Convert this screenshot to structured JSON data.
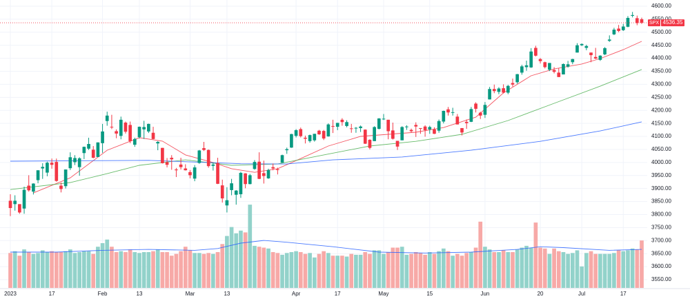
{
  "chart_data": {
    "type": "candlestick",
    "symbol": "SPX",
    "up_color": "#089981",
    "down_color": "#f23645",
    "volume_up_color": "#92d2ca",
    "volume_down_color": "#f7a9a7",
    "grid": true,
    "ylim": [
      3550,
      4600
    ],
    "yticks": [
      {
        "value": 3550,
        "label": "3550.00"
      },
      {
        "value": 3600,
        "label": "3600.00"
      },
      {
        "value": 3650,
        "label": "3650.00"
      },
      {
        "value": 3700,
        "label": "3700.00"
      },
      {
        "value": 3750,
        "label": "3750.00"
      },
      {
        "value": 3800,
        "label": "3800.00"
      },
      {
        "value": 3850,
        "label": "3850.00"
      },
      {
        "value": 3900,
        "label": "3900.00"
      },
      {
        "value": 3950,
        "label": "3950.00"
      },
      {
        "value": 4000,
        "label": "4000.00"
      },
      {
        "value": 4050,
        "label": "4050.00"
      },
      {
        "value": 4100,
        "label": "4100.00"
      },
      {
        "value": 4150,
        "label": "4150.00"
      },
      {
        "value": 4200,
        "label": "4200.00"
      },
      {
        "value": 4250,
        "label": "4250.00"
      },
      {
        "value": 4300,
        "label": "4300.00"
      },
      {
        "value": 4350,
        "label": "4350.00"
      },
      {
        "value": 4400,
        "label": "4400.00"
      },
      {
        "value": 4450,
        "label": "4450.00"
      },
      {
        "value": 4500,
        "label": "4500.00"
      },
      {
        "value": 4550,
        "label": "4550.00"
      },
      {
        "value": 4600,
        "label": "4600.00"
      }
    ],
    "xlim": [
      0,
      137
    ],
    "xticks": [
      {
        "value": 0,
        "label": "2023"
      },
      {
        "value": 9,
        "label": "17"
      },
      {
        "value": 20,
        "label": "Feb"
      },
      {
        "value": 28,
        "label": "13"
      },
      {
        "value": 39,
        "label": "Mar"
      },
      {
        "value": 47,
        "label": "13"
      },
      {
        "value": 62,
        "label": "Apr"
      },
      {
        "value": 71,
        "label": "17"
      },
      {
        "value": 81,
        "label": "May"
      },
      {
        "value": 91,
        "label": "15"
      },
      {
        "value": 103,
        "label": "Jun"
      },
      {
        "value": 115,
        "label": "20"
      },
      {
        "value": 124,
        "label": "Jul"
      },
      {
        "value": 133,
        "label": "17"
      }
    ],
    "volume_lim": [
      0,
      32
    ],
    "open": [
      3853,
      3840,
      3840,
      3823,
      3911,
      3888,
      3932,
      3977,
      3961,
      3999,
      4002,
      3911,
      3909,
      3978,
      4001,
      3982,
      4036,
      4053,
      4049,
      4021,
      4074,
      4159,
      4137,
      4120,
      4102,
      4153,
      4144,
      4068,
      4097,
      4127,
      4119,
      4114,
      4073,
      4056,
      4001,
      4018,
      3973,
      3992,
      3977,
      3963,
      3938,
      3998,
      4055,
      4048,
      3987,
      3998,
      3912,
      3835,
      3894,
      3876,
      3878,
      3958,
      3917,
      3975,
      4003,
      3959,
      3939,
      3982,
      3974,
      3999,
      4047,
      4057,
      4102,
      4128,
      4095,
      4082,
      4085,
      4122,
      4121,
      4100,
      4140,
      4137,
      4164,
      4140,
      4131,
      4133,
      4132,
      4126,
      4087,
      4082,
      4129,
      4166,
      4164,
      4123,
      4083,
      4085,
      4136,
      4125,
      4144,
      4132,
      4138,
      4127,
      4127,
      4122,
      4157,
      4204,
      4191,
      4176,
      4132,
      4156,
      4156,
      4226,
      4191,
      4183,
      4242,
      4282,
      4271,
      4285,
      4268,
      4305,
      4308,
      4345,
      4366,
      4365,
      4440,
      4397,
      4385,
      4356,
      4355,
      4345,
      4338,
      4368,
      4385,
      4422,
      4450,
      4440,
      4422,
      4405,
      4394,
      4415,
      4467,
      4492,
      4514,
      4508,
      4521,
      4563,
      4554,
      4550
    ],
    "high": [
      3878,
      3874,
      3840,
      3907,
      3951,
      3920,
      3970,
      3997,
      4003,
      4015,
      4015,
      3923,
      3973,
      4039,
      4028,
      4020,
      4061,
      4095,
      4063,
      4077,
      4148,
      4195,
      4183,
      4127,
      4176,
      4157,
      4157,
      4095,
      4138,
      4160,
      4149,
      4137,
      4082,
      4056,
      4017,
      4028,
      3979,
      4018,
      3993,
      3971,
      3990,
      4048,
      4079,
      4050,
      4000,
      4018,
      3934,
      3905,
      3937,
      3894,
      3964,
      3959,
      3956,
      4009,
      4039,
      4007,
      3976,
      3996,
      3980,
      4030,
      4057,
      4110,
      4128,
      4134,
      4103,
      4107,
      4110,
      4125,
      4125,
      4150,
      4164,
      4152,
      4170,
      4162,
      4148,
      4136,
      4142,
      4127,
      4089,
      4139,
      4170,
      4186,
      4164,
      4153,
      4083,
      4139,
      4143,
      4130,
      4154,
      4132,
      4143,
      4141,
      4135,
      4165,
      4199,
      4213,
      4210,
      4186,
      4132,
      4165,
      4213,
      4231,
      4195,
      4232,
      4290,
      4299,
      4289,
      4300,
      4298,
      4322,
      4340,
      4375,
      4391,
      4439,
      4448,
      4401,
      4387,
      4382,
      4366,
      4362,
      4380,
      4390,
      4398,
      4458,
      4457,
      4452,
      4422,
      4440,
      4412,
      4443,
      4488,
      4517,
      4528,
      4532,
      4562,
      4578,
      4564,
      4556
    ],
    "low": [
      3794,
      3815,
      3803,
      3803,
      3888,
      3877,
      3920,
      3937,
      3947,
      3976,
      3926,
      3885,
      3900,
      3971,
      3990,
      3949,
      4013,
      4048,
      4016,
      4021,
      4037,
      4141,
      4128,
      4093,
      4089,
      4111,
      4074,
      4060,
      4092,
      4090,
      4113,
      4089,
      4047,
      3996,
      3981,
      3972,
      3944,
      3973,
      3969,
      3939,
      3928,
      3995,
      4044,
      3980,
      3969,
      3917,
      3846,
      3808,
      3874,
      3838,
      3864,
      3901,
      3916,
      3972,
      3936,
      3919,
      3937,
      3970,
      3954,
      3999,
      4033,
      4056,
      4096,
      4096,
      4073,
      4076,
      4080,
      4106,
      4086,
      4099,
      4113,
      4124,
      4141,
      4135,
      4114,
      4114,
      4117,
      4071,
      4050,
      4082,
      4127,
      4163,
      4089,
      4088,
      4048,
      4085,
      4125,
      4116,
      4098,
      4110,
      4099,
      4110,
      4109,
      4114,
      4150,
      4180,
      4180,
      4146,
      4104,
      4129,
      4155,
      4192,
      4167,
      4171,
      4242,
      4266,
      4262,
      4265,
      4262,
      4291,
      4302,
      4337,
      4352,
      4363,
      4407,
      4380,
      4361,
      4351,
      4342,
      4328,
      4338,
      4364,
      4377,
      4422,
      4447,
      4431,
      4385,
      4397,
      4390,
      4412,
      4463,
      4489,
      4500,
      4505,
      4519,
      4557,
      4527,
      4532
    ],
    "close": [
      3825,
      3853,
      3808,
      3895,
      3893,
      3919,
      3970,
      3983,
      3999,
      3991,
      3929,
      3898,
      3973,
      4020,
      4017,
      4016,
      4060,
      4071,
      4018,
      4077,
      4119,
      4180,
      4136,
      4111,
      4164,
      4118,
      4082,
      4090,
      4137,
      4136,
      4148,
      4090,
      4079,
      3997,
      3991,
      4012,
      3970,
      3982,
      3970,
      3951,
      3981,
      4046,
      4048,
      3986,
      3992,
      3918,
      3862,
      3855,
      3920,
      3892,
      3960,
      3917,
      3951,
      4002,
      3937,
      3948,
      3971,
      3977,
      3971,
      4028,
      4051,
      4109,
      4124,
      4101,
      4091,
      4105,
      4110,
      4108,
      4092,
      4146,
      4138,
      4152,
      4155,
      4155,
      4130,
      4133,
      4138,
      4072,
      4056,
      4136,
      4169,
      4168,
      4120,
      4091,
      4061,
      4136,
      4138,
      4120,
      4138,
      4131,
      4124,
      4136,
      4110,
      4159,
      4198,
      4192,
      4193,
      4146,
      4115,
      4151,
      4205,
      4206,
      4180,
      4221,
      4282,
      4274,
      4284,
      4268,
      4294,
      4299,
      4339,
      4369,
      4373,
      4426,
      4410,
      4389,
      4366,
      4382,
      4348,
      4328,
      4378,
      4377,
      4397,
      4450,
      4455,
      4447,
      4412,
      4399,
      4410,
      4439,
      4472,
      4510,
      4505,
      4522,
      4555,
      4566,
      4535,
      4536.35
    ],
    "volume": [
      3.9,
      4.1,
      3.6,
      4.3,
      4.0,
      3.8,
      3.9,
      4.2,
      4.0,
      4.1,
      4.0,
      4.0,
      4.1,
      4.3,
      3.9,
      4.0,
      4.1,
      4.1,
      3.8,
      4.6,
      5.0,
      5.4,
      4.6,
      4.0,
      4.1,
      4.0,
      4.3,
      4.0,
      3.9,
      4.0,
      4.0,
      4.1,
      4.3,
      4.0,
      4.0,
      3.6,
      3.8,
      4.1,
      4.6,
      4.2,
      3.9,
      3.9,
      3.8,
      3.9,
      3.8,
      4.0,
      4.9,
      5.8,
      6.8,
      6.1,
      6.4,
      6.2,
      9.3,
      4.7,
      4.6,
      4.5,
      4.4,
      4.0,
      3.9,
      3.7,
      3.9,
      4.0,
      4.1,
      4.0,
      3.8,
      3.9,
      3.4,
      3.8,
      4.1,
      3.9,
      3.6,
      3.6,
      3.6,
      3.5,
      3.8,
      3.7,
      3.7,
      4.0,
      3.8,
      4.2,
      4.2,
      3.8,
      4.0,
      4.5,
      4.5,
      4.6,
      3.7,
      3.8,
      4.0,
      3.9,
      3.7,
      4.0,
      3.8,
      4.1,
      4.4,
      4.1,
      3.6,
      3.8,
      3.6,
      3.9,
      4.0,
      4.5,
      7.4,
      4.6,
      4.3,
      4.0,
      4.0,
      4.2,
      4.0,
      4.0,
      4.3,
      4.5,
      4.7,
      4.5,
      7.3,
      4.5,
      4.4,
      3.8,
      4.4,
      4.1,
      4.0,
      3.8,
      3.9,
      4.2,
      2.4,
      3.9,
      4.1,
      3.8,
      3.8,
      3.8,
      3.8,
      3.9,
      4.2,
      4.1,
      4.2,
      4.4,
      4.3,
      5.3
    ],
    "series": [
      {
        "color": "#f23645",
        "x": [
          5,
          13,
          21,
          28,
          33,
          38,
          44,
          48,
          53,
          58,
          63,
          69,
          76,
          82,
          88,
          94,
          101,
          107,
          113,
          118,
          124,
          128,
          133,
          137
        ],
        "values": [
          3883,
          3941,
          4047,
          4095,
          4082,
          4029,
          4000,
          3976,
          3962,
          3976,
          4015,
          4063,
          4100,
          4108,
          4116,
          4134,
          4174,
          4267,
          4333,
          4359,
          4378,
          4399,
          4433,
          4465
        ]
      },
      {
        "color": "#4caf50",
        "x": [
          0,
          13,
          21,
          28,
          38,
          48,
          58,
          68,
          78,
          88,
          98,
          108,
          118,
          128,
          137
        ],
        "values": [
          3896,
          3923,
          3957,
          3989,
          4010,
          3989,
          3994,
          4029,
          4063,
          4081,
          4108,
          4161,
          4227,
          4293,
          4357
        ]
      },
      {
        "color": "#2962ff",
        "x": [
          0,
          30,
          50,
          60,
          70,
          85,
          100,
          115,
          128,
          137
        ],
        "values": [
          4005,
          4008,
          3995,
          3994,
          4010,
          4021,
          4047,
          4081,
          4121,
          4156
        ]
      },
      {
        "color": "#2962ff",
        "axis": "volume",
        "x": [
          0,
          10,
          20,
          30,
          40,
          45,
          50,
          55,
          60,
          70,
          80,
          90,
          100,
          110,
          115,
          120,
          130,
          137
        ],
        "values": [
          4.0,
          4.0,
          4.2,
          4.3,
          4.2,
          4.4,
          5.0,
          5.3,
          5.1,
          4.6,
          4.0,
          3.9,
          4.0,
          4.3,
          4.6,
          4.5,
          4.2,
          4.3
        ]
      }
    ]
  }
}
